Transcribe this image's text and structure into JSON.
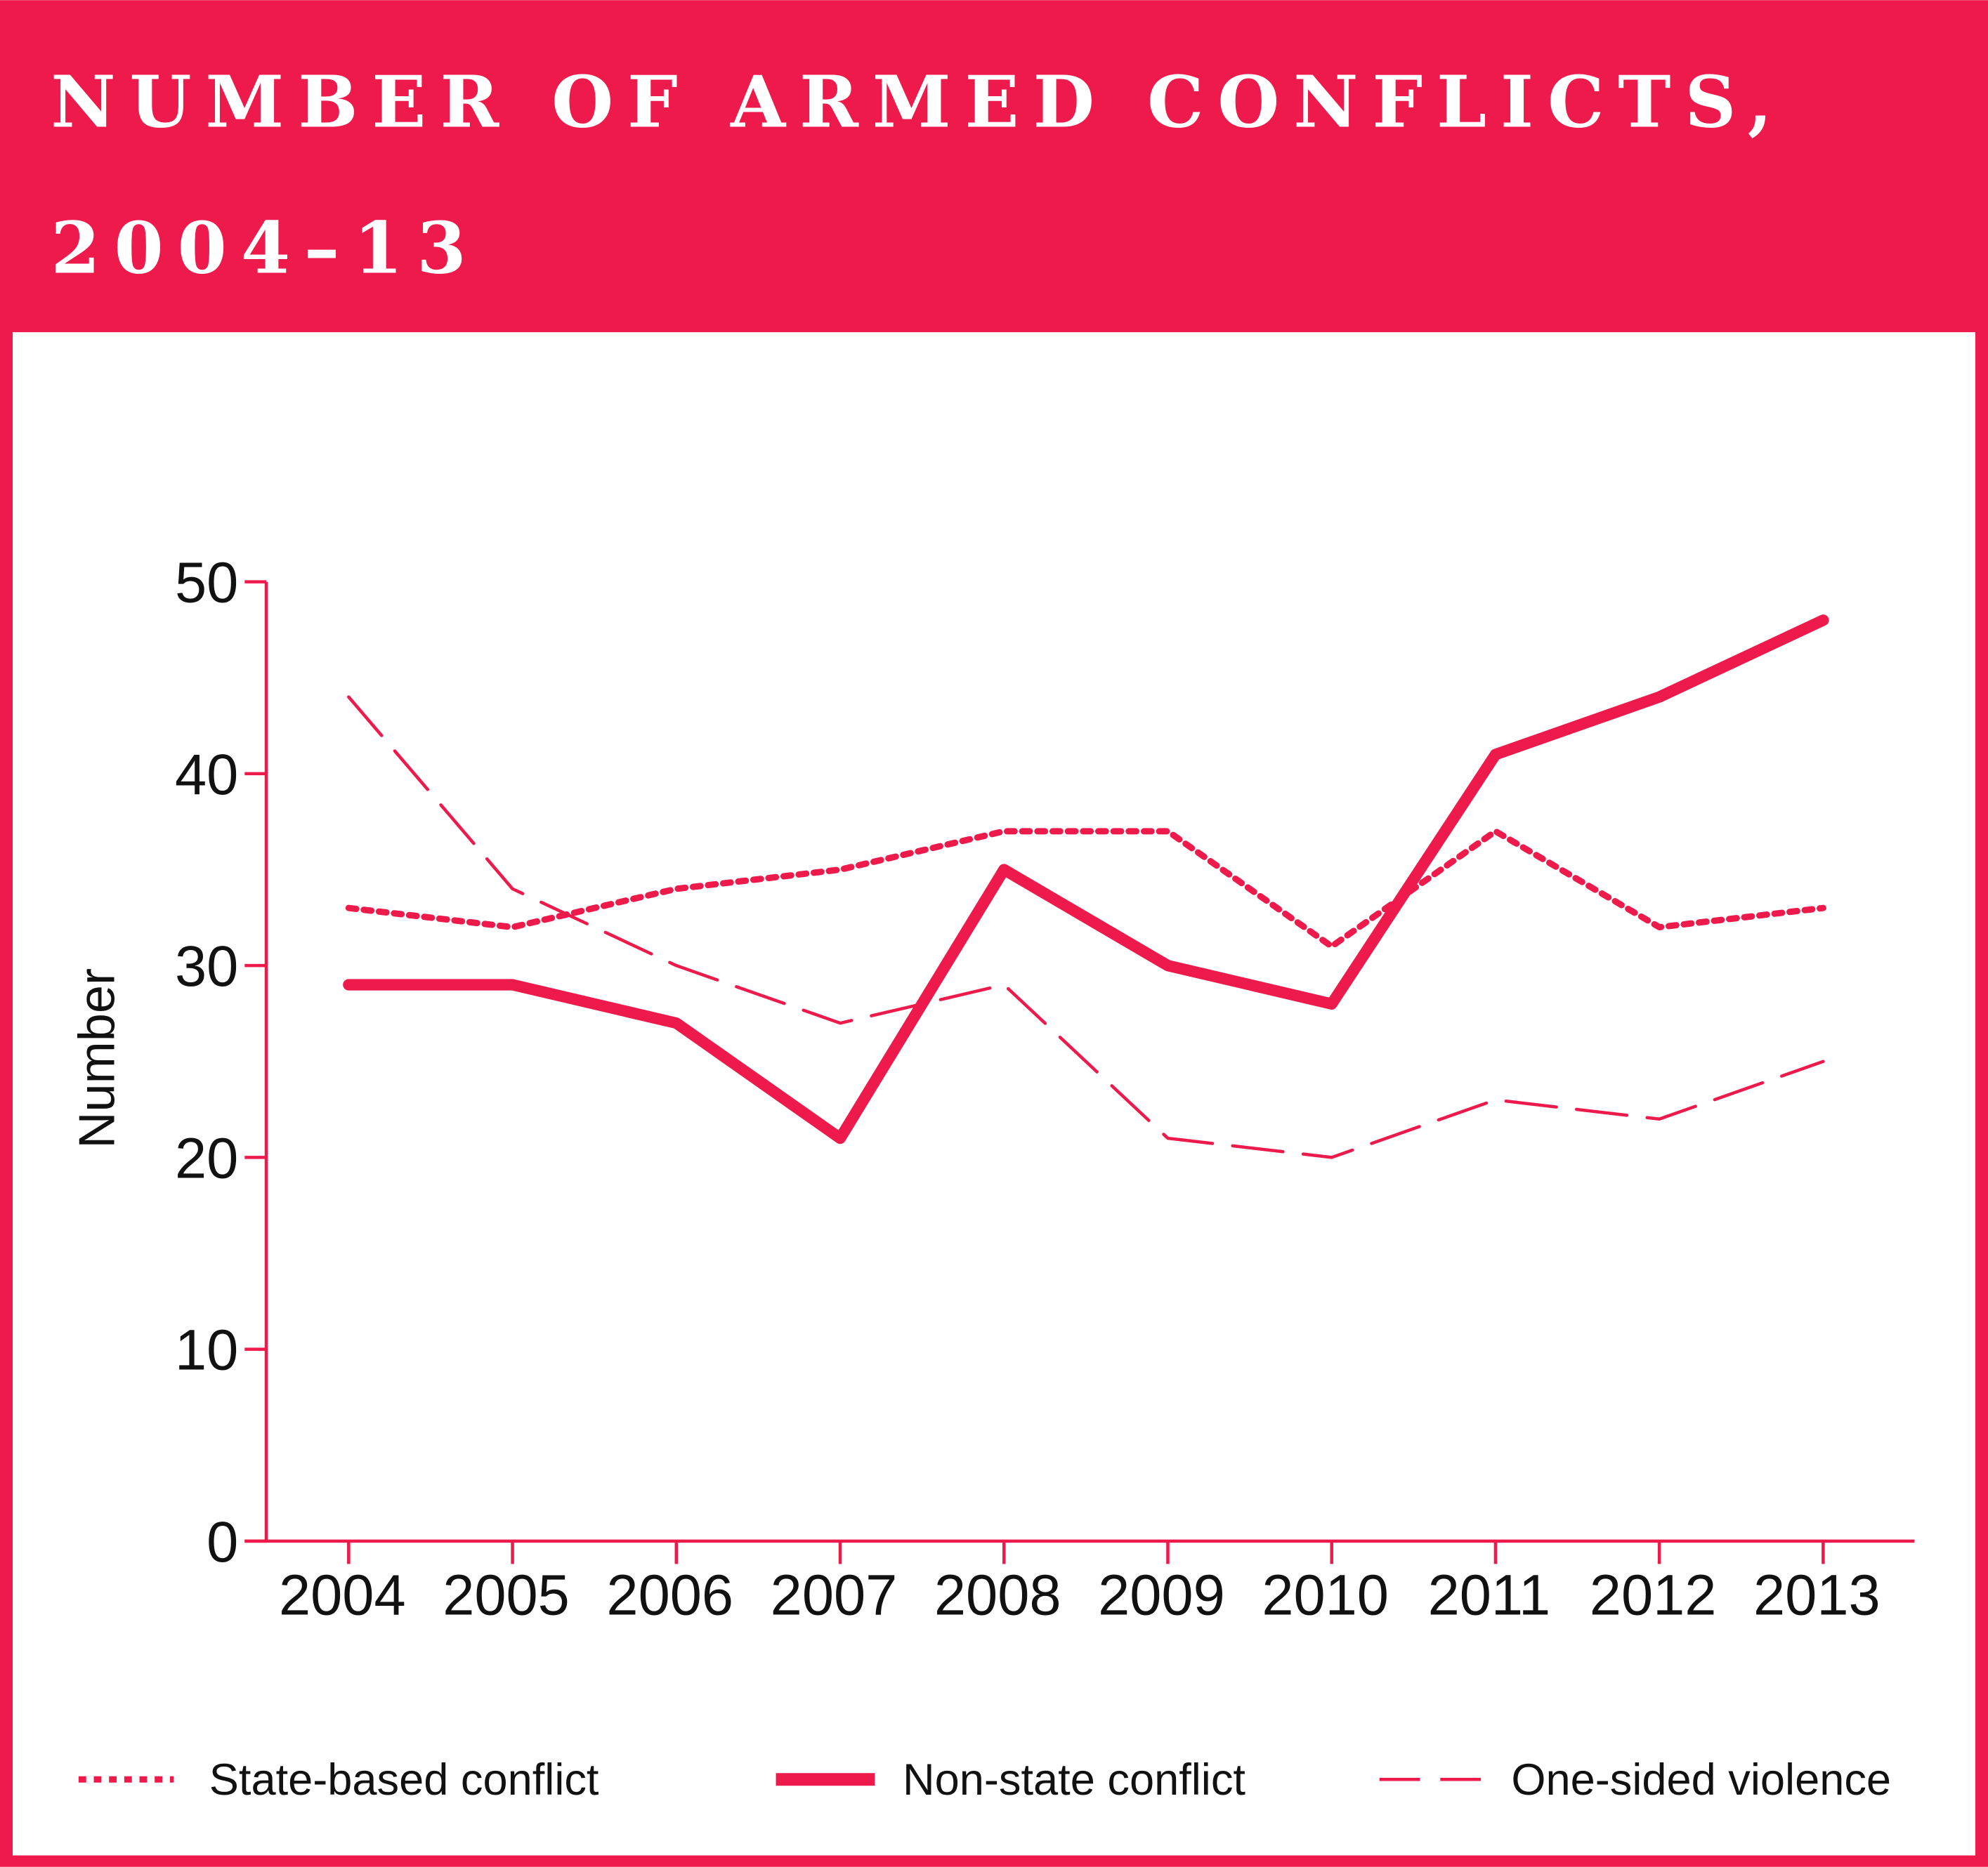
{
  "title_line1": "NUMBER OF ARMED CONFLICTS,",
  "title_line2": "2004–13",
  "colors": {
    "accent": "#ee1a4b",
    "background": "#ffffff",
    "text": "#111111"
  },
  "chart_data": {
    "type": "line",
    "title": "NUMBER OF ARMED CONFLICTS, 2004–13",
    "xlabel": "",
    "ylabel": "Number",
    "x": [
      2004,
      2005,
      2006,
      2007,
      2008,
      2009,
      2010,
      2011,
      2012,
      2013
    ],
    "x_tick_labels": [
      "2004",
      "2005",
      "2006",
      "2007",
      "2008",
      "2009",
      "2010",
      "2011",
      "2012",
      "2013"
    ],
    "ylim": [
      0,
      50
    ],
    "y_ticks": [
      0,
      10,
      20,
      30,
      40,
      50
    ],
    "y_tick_labels": [
      "0",
      "10",
      "20",
      "30",
      "40",
      "50"
    ],
    "grid": false,
    "legend_placement": "bottom",
    "series": [
      {
        "name": "State-based conflict",
        "style": "dotted",
        "values": [
          33,
          32,
          34,
          35,
          37,
          37,
          31,
          37,
          32,
          33
        ]
      },
      {
        "name": "Non-state conflict",
        "style": "solid-thick",
        "values": [
          29,
          29,
          27,
          21,
          35,
          30,
          28,
          41,
          44,
          48
        ]
      },
      {
        "name": "One-sided violence",
        "style": "dashed",
        "values": [
          44,
          34,
          30,
          27,
          29,
          21,
          20,
          23,
          22,
          25
        ]
      }
    ]
  }
}
